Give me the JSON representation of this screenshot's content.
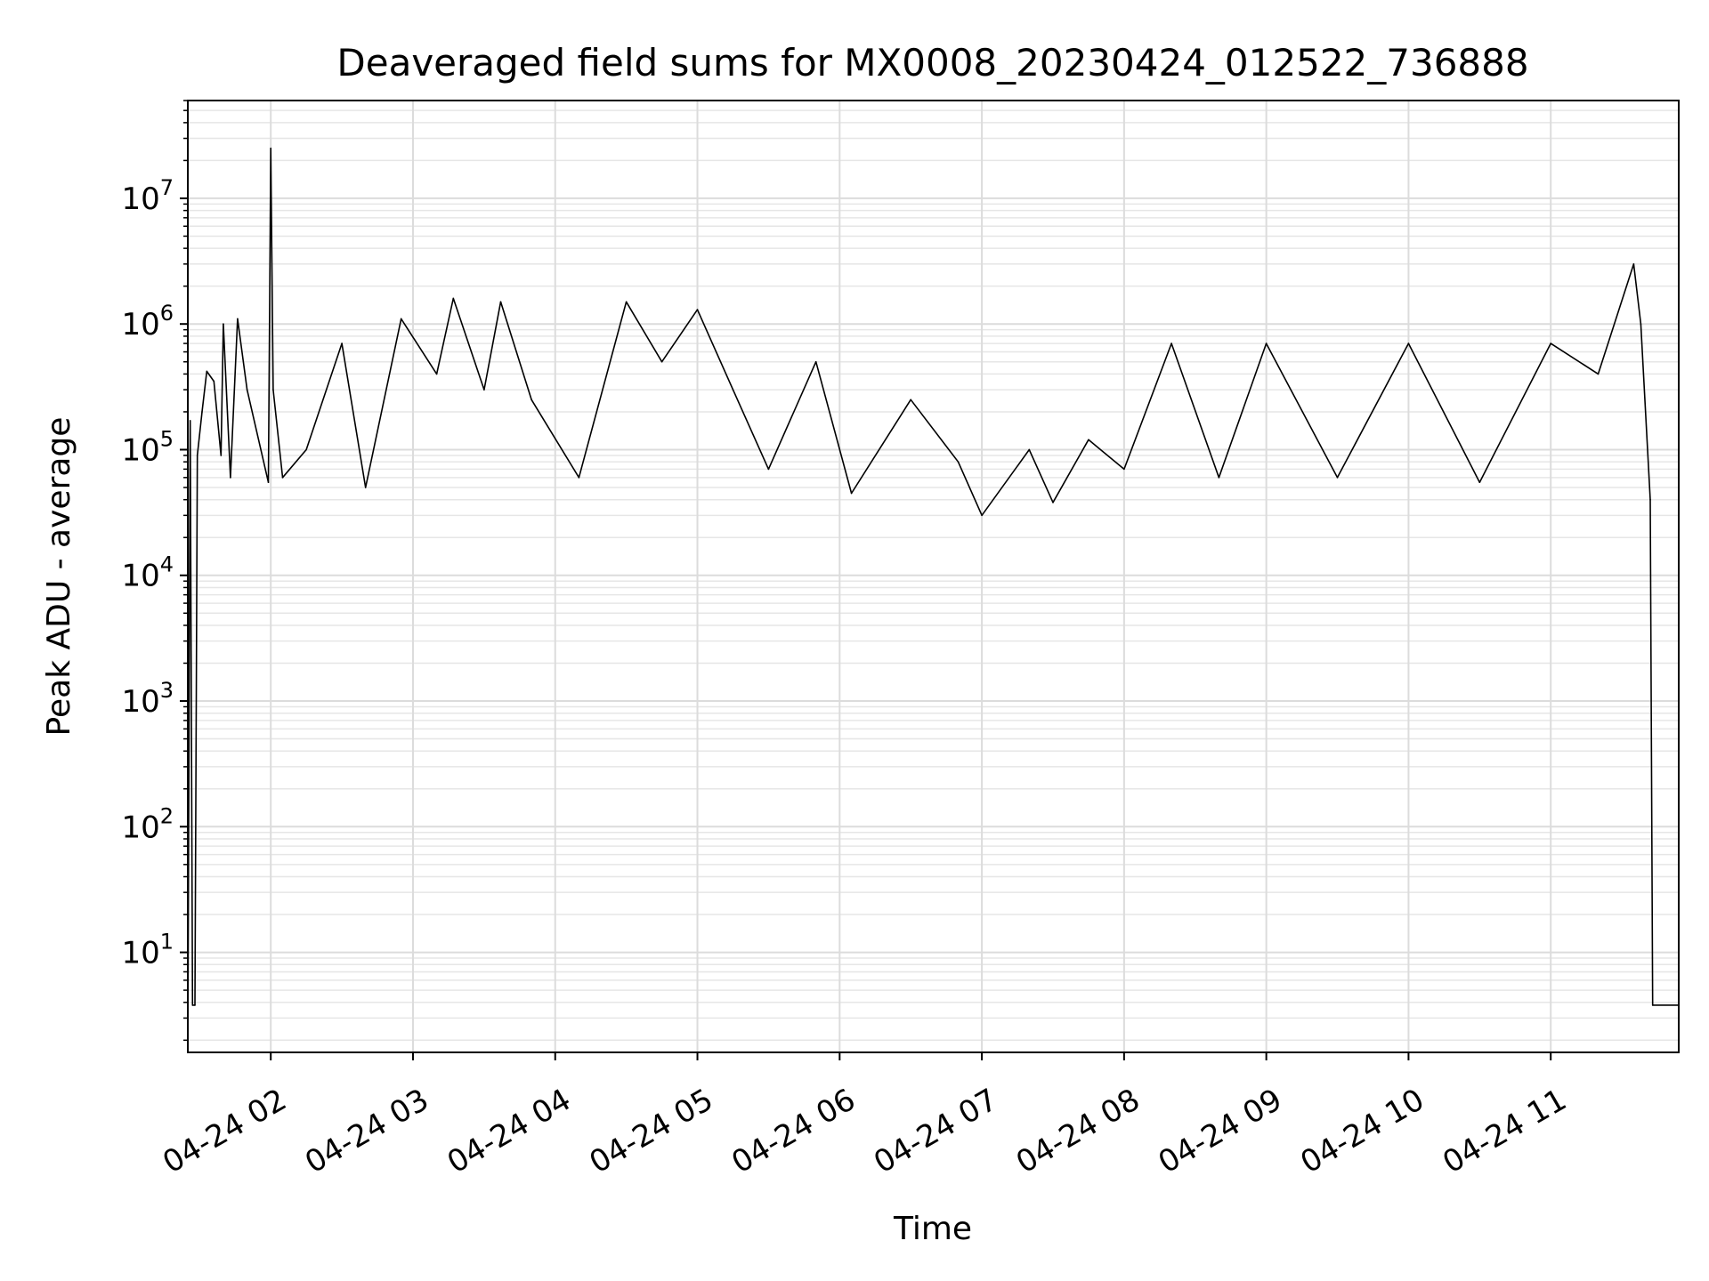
{
  "chart_data": {
    "type": "line",
    "title": "Deaveraged field sums for MX0008_20230424_012522_736888",
    "xlabel": "Time",
    "ylabel": "Peak ADU - average",
    "y_scale": "log",
    "ylim": [
      1.6,
      60000000
    ],
    "xlim": [
      "2023-04-24 01:25",
      "2023-04-24 11:54"
    ],
    "x_ticks": [
      {
        "at": "2023-04-24 02:00",
        "label": "04-24 02"
      },
      {
        "at": "2023-04-24 03:00",
        "label": "04-24 03"
      },
      {
        "at": "2023-04-24 04:00",
        "label": "04-24 04"
      },
      {
        "at": "2023-04-24 05:00",
        "label": "04-24 05"
      },
      {
        "at": "2023-04-24 06:00",
        "label": "04-24 06"
      },
      {
        "at": "2023-04-24 07:00",
        "label": "04-24 07"
      },
      {
        "at": "2023-04-24 08:00",
        "label": "04-24 08"
      },
      {
        "at": "2023-04-24 09:00",
        "label": "04-24 09"
      },
      {
        "at": "2023-04-24 10:00",
        "label": "04-24 10"
      },
      {
        "at": "2023-04-24 11:00",
        "label": "04-24 11"
      }
    ],
    "y_ticks": [
      {
        "value": 10,
        "base": "10",
        "exp": "1"
      },
      {
        "value": 100,
        "base": "10",
        "exp": "2"
      },
      {
        "value": 1000,
        "base": "10",
        "exp": "3"
      },
      {
        "value": 10000,
        "base": "10",
        "exp": "4"
      },
      {
        "value": 100000,
        "base": "10",
        "exp": "5"
      },
      {
        "value": 1000000,
        "base": "10",
        "exp": "6"
      },
      {
        "value": 10000000,
        "base": "10",
        "exp": "7"
      }
    ],
    "grid": true,
    "line_color": "#000000",
    "series": [
      {
        "points": [
          [
            "2023-04-24 01:25",
            1.6
          ],
          [
            "2023-04-24 01:26",
            170000
          ],
          [
            "2023-04-24 01:27",
            3.8
          ],
          [
            "2023-04-24 01:28",
            3.8
          ],
          [
            "2023-04-24 01:29",
            90000
          ],
          [
            "2023-04-24 01:31",
            200000
          ],
          [
            "2023-04-24 01:33",
            420000
          ],
          [
            "2023-04-24 01:36",
            350000
          ],
          [
            "2023-04-24 01:39",
            90000
          ],
          [
            "2023-04-24 01:40",
            1000000
          ],
          [
            "2023-04-24 01:43",
            60000
          ],
          [
            "2023-04-24 01:46",
            1100000
          ],
          [
            "2023-04-24 01:50",
            300000
          ],
          [
            "2023-04-24 01:59",
            55000
          ],
          [
            "2023-04-24 02:00",
            25000000
          ],
          [
            "2023-04-24 02:01",
            300000
          ],
          [
            "2023-04-24 02:05",
            60000
          ],
          [
            "2023-04-24 02:15",
            100000
          ],
          [
            "2023-04-24 02:30",
            700000
          ],
          [
            "2023-04-24 02:40",
            50000
          ],
          [
            "2023-04-24 02:55",
            1100000
          ],
          [
            "2023-04-24 03:10",
            400000
          ],
          [
            "2023-04-24 03:17",
            1600000
          ],
          [
            "2023-04-24 03:30",
            300000
          ],
          [
            "2023-04-24 03:37",
            1500000
          ],
          [
            "2023-04-24 03:50",
            250000
          ],
          [
            "2023-04-24 04:10",
            60000
          ],
          [
            "2023-04-24 04:30",
            1500000
          ],
          [
            "2023-04-24 04:45",
            500000
          ],
          [
            "2023-04-24 05:00",
            1300000
          ],
          [
            "2023-04-24 05:15",
            300000
          ],
          [
            "2023-04-24 05:30",
            70000
          ],
          [
            "2023-04-24 05:50",
            500000
          ],
          [
            "2023-04-24 06:05",
            45000
          ],
          [
            "2023-04-24 06:30",
            250000
          ],
          [
            "2023-04-24 06:50",
            80000
          ],
          [
            "2023-04-24 07:00",
            30000
          ],
          [
            "2023-04-24 07:20",
            100000
          ],
          [
            "2023-04-24 07:30",
            38000
          ],
          [
            "2023-04-24 07:45",
            120000
          ],
          [
            "2023-04-24 08:00",
            70000
          ],
          [
            "2023-04-24 08:20",
            700000
          ],
          [
            "2023-04-24 08:40",
            60000
          ],
          [
            "2023-04-24 09:00",
            700000
          ],
          [
            "2023-04-24 09:30",
            60000
          ],
          [
            "2023-04-24 10:00",
            700000
          ],
          [
            "2023-04-24 10:30",
            55000
          ],
          [
            "2023-04-24 11:00",
            700000
          ],
          [
            "2023-04-24 11:20",
            400000
          ],
          [
            "2023-04-24 11:35",
            3000000
          ],
          [
            "2023-04-24 11:38",
            1000000
          ],
          [
            "2023-04-24 11:42",
            40000
          ],
          [
            "2023-04-24 11:43",
            3.8
          ],
          [
            "2023-04-24 11:54",
            3.8
          ]
        ]
      }
    ]
  }
}
